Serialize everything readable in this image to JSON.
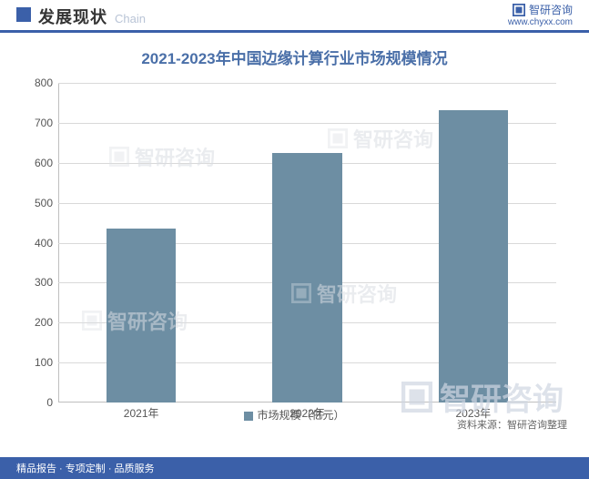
{
  "header": {
    "title": "发展现状",
    "subtitle": "Chain",
    "brand_name": "智研咨询",
    "brand_url": "www.chyxx.com"
  },
  "chart": {
    "type": "bar",
    "title": "2021-2023年中国边缘计算行业市场规模情况",
    "categories": [
      "2021年",
      "2022年",
      "2023年"
    ],
    "values": [
      436,
      624,
      732
    ],
    "ylim": [
      0,
      800
    ],
    "ytick_step": 100,
    "bar_color": "#6d8ea3",
    "grid_color": "#d9d9d9",
    "axis_color": "#bfbfbf",
    "background_color": "#ffffff",
    "title_color": "#4a6fa8",
    "title_fontsize": 17,
    "label_color": "#555555",
    "label_fontsize": 12,
    "bar_width_pct": 14,
    "legend": {
      "label": "市场规模（亿元）",
      "swatch_color": "#6d8ea3"
    }
  },
  "source": {
    "prefix": "资料来源：",
    "text": "智研咨询整理"
  },
  "footer": {
    "left": "精品报告 · 专项定制 · 品质服务"
  },
  "watermark": {
    "text": "智研咨询"
  },
  "colors": {
    "brand_blue": "#3b60a9",
    "header_border": "#3b60a9",
    "footer_bg": "#3b60a9"
  }
}
